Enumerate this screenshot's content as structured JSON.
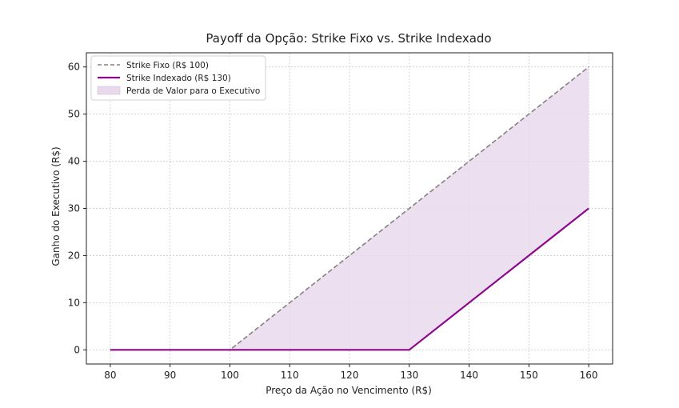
{
  "chart_data": {
    "type": "line",
    "title": "Payoff da Opção: Strike Fixo vs. Strike Indexado",
    "xlabel": "Preço da Ação no Vencimento (R$)",
    "ylabel": "Ganho do Executivo (R$)",
    "xlim": [
      76,
      164
    ],
    "ylim": [
      -3,
      63
    ],
    "xticks": [
      80,
      90,
      100,
      110,
      120,
      130,
      140,
      150,
      160
    ],
    "yticks": [
      0,
      10,
      20,
      30,
      40,
      50,
      60
    ],
    "grid": true,
    "legend_position": "top-left",
    "series": [
      {
        "name": "Strike Fixo (R$ 100)",
        "style": "dashed",
        "color": "#888080",
        "x": [
          80,
          100,
          160
        ],
        "y": [
          0,
          0,
          60
        ]
      },
      {
        "name": "Strike Indexado (R$ 130)",
        "style": "solid",
        "color": "#8b0a8b",
        "x": [
          80,
          130,
          160
        ],
        "y": [
          0,
          0,
          30
        ]
      }
    ],
    "fill_between": {
      "name": "Perda de Valor para o Executivo",
      "color": "#e9d9ec"
    }
  }
}
